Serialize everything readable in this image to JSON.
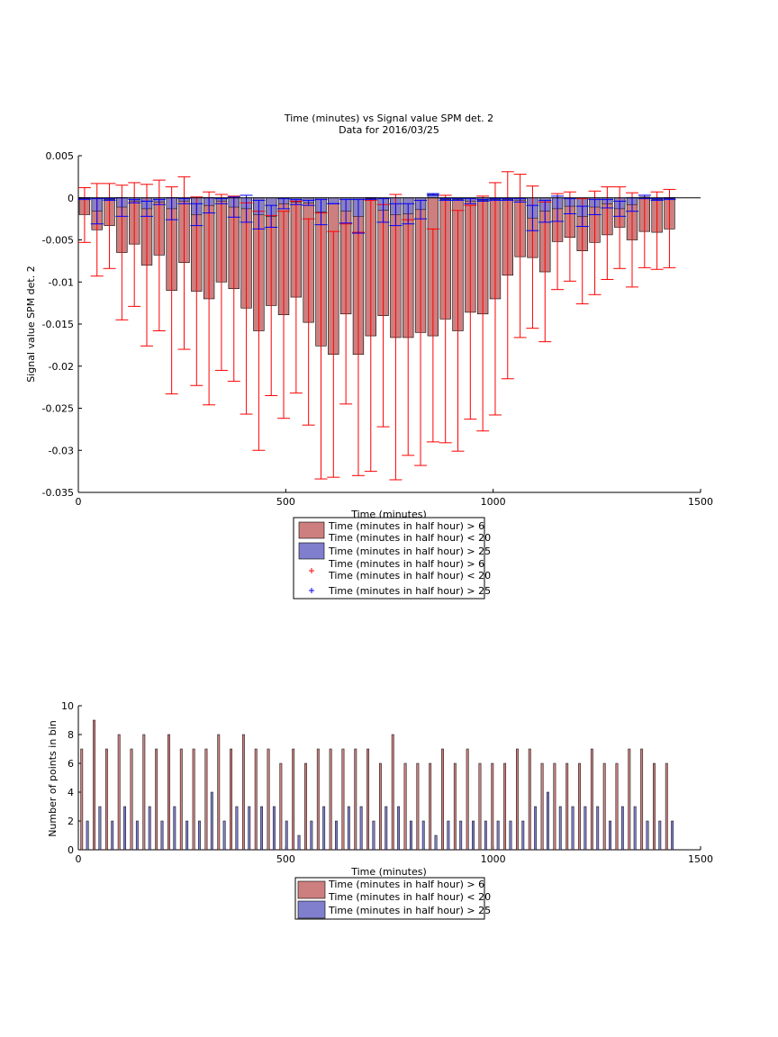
{
  "chart_data": [
    {
      "type": "bar",
      "title": "Time (minutes) vs Signal value SPM det. 2",
      "subtitle": "Data for 2016/03/25",
      "xlabel": "Time (minutes)",
      "ylabel": "Signal value SPM det. 2",
      "xlim": [
        0,
        1500
      ],
      "ylim": [
        -0.035,
        0.005
      ],
      "xticks": [
        "0",
        "500",
        "1000",
        "1500"
      ],
      "yticks": [
        "0.005",
        "0",
        "-0.005",
        "-0.01",
        "-0.015",
        "-0.02",
        "-0.025",
        "-0.03",
        "-0.035"
      ],
      "grid": false,
      "legend_placement": "below",
      "legend": [
        {
          "marker": "bar",
          "color": "#cd7f7f",
          "lines": [
            "Time (minutes in half hour) > 6",
            "Time (minutes in half hour) < 20"
          ]
        },
        {
          "marker": "bar",
          "color": "#7f7fcd",
          "lines": [
            "Time (minutes in half hour) > 25"
          ]
        },
        {
          "marker": "plus",
          "color": "#ff0000",
          "lines": [
            "Time (minutes in half hour) > 6",
            "Time (minutes in half hour) < 20"
          ]
        },
        {
          "marker": "plus",
          "color": "#0000ff",
          "lines": [
            "Time (minutes in half hour) > 25"
          ]
        }
      ],
      "x": [
        15,
        45,
        75,
        105,
        135,
        165,
        195,
        225,
        255,
        285,
        315,
        345,
        375,
        405,
        435,
        465,
        495,
        525,
        555,
        585,
        615,
        645,
        675,
        705,
        735,
        765,
        795,
        825,
        855,
        885,
        915,
        945,
        975,
        1005,
        1035,
        1065,
        1095,
        1125,
        1155,
        1185,
        1215,
        1245,
        1275,
        1305,
        1335,
        1365,
        1395,
        1425
      ],
      "series": [
        {
          "name": "Time (minutes in half hour) > 6 Time (minutes in half hour) < 20",
          "color": "#cd7f7f",
          "error_color": "#ff0000",
          "values": [
            -0.002,
            -0.0038,
            -0.0033,
            -0.0065,
            -0.0055,
            -0.008,
            -0.0068,
            -0.011,
            -0.0077,
            -0.0111,
            -0.012,
            -0.01,
            -0.0108,
            -0.0131,
            -0.0158,
            -0.0128,
            -0.0139,
            -0.0118,
            -0.0148,
            -0.0176,
            -0.0186,
            -0.0138,
            -0.0186,
            -0.0164,
            -0.014,
            -0.0166,
            -0.0166,
            -0.016,
            -0.0164,
            -0.0144,
            -0.0158,
            -0.0136,
            -0.0138,
            -0.012,
            -0.0092,
            -0.007,
            -0.0071,
            -0.0088,
            -0.0052,
            -0.0047,
            -0.0063,
            -0.0053,
            -0.0044,
            -0.0035,
            -0.005,
            -0.004,
            -0.0041,
            -0.0037
          ],
          "err_low": [
            -0.0053,
            -0.0093,
            -0.0084,
            -0.0145,
            -0.0129,
            -0.0176,
            -0.0158,
            -0.0233,
            -0.018,
            -0.0223,
            -0.0246,
            -0.0205,
            -0.0218,
            -0.0257,
            -0.03,
            -0.0235,
            -0.0262,
            -0.0232,
            -0.027,
            -0.0334,
            -0.0332,
            -0.0245,
            -0.033,
            -0.0325,
            -0.0272,
            -0.0335,
            -0.0306,
            -0.0318,
            -0.029,
            -0.0291,
            -0.0301,
            -0.0263,
            -0.0277,
            -0.0258,
            -0.0215,
            -0.0166,
            -0.0155,
            -0.0171,
            -0.0109,
            -0.0099,
            -0.0126,
            -0.0115,
            -0.0097,
            -0.0084,
            -0.0106,
            -0.0083,
            -0.0085,
            -0.0083
          ],
          "err_high": [
            0.0012,
            0.0017,
            0.0017,
            0.0015,
            0.0018,
            0.0016,
            0.0021,
            0.0013,
            0.0025,
            0.0001,
            0.0007,
            0.0004,
            0.0002,
            -0.0006,
            -0.0016,
            -0.0021,
            -0.0016,
            -0.0004,
            -0.0025,
            -0.0018,
            -0.004,
            -0.0031,
            -0.0041,
            -0.0003,
            -0.0008,
            0.0004,
            -0.0026,
            -0.0003,
            -0.0037,
            0.0003,
            -0.0015,
            -0.0009,
            0.0002,
            0.0018,
            0.0031,
            0.0028,
            0.0014,
            -0.0005,
            0.0005,
            0.0007,
            -0.0001,
            0.0008,
            0.0013,
            0.0013,
            0.0006,
            0.0003,
            0.0007,
            0.001
          ]
        },
        {
          "name": "Time (minutes in half hour) > 25",
          "color": "#7f7fcd",
          "error_color": "#0000ff",
          "values": [
            -0.0001,
            -0.0016,
            -0.0002,
            -0.0011,
            -0.0004,
            -0.0013,
            -0.0005,
            -0.0013,
            -0.0004,
            -0.002,
            -0.0009,
            -0.0004,
            -0.0011,
            -0.0013,
            -0.002,
            -0.0022,
            -0.0007,
            -0.0005,
            -0.0006,
            -0.0017,
            -0.0007,
            -0.0016,
            -0.0022,
            -0.0001,
            -0.0015,
            -0.002,
            -0.0019,
            -0.0014,
            0.0004,
            -0.0002,
            -0.0002,
            -0.0004,
            -0.0003,
            -0.0002,
            -0.0002,
            -0.0003,
            -0.0024,
            -0.0016,
            -0.0013,
            -0.001,
            -0.0022,
            -0.0011,
            -0.0007,
            -0.0013,
            -0.0008,
            0.0001,
            -0.0002,
            -0.0001
          ],
          "err_low": [
            -0.0002,
            -0.0031,
            -0.0003,
            -0.0022,
            -0.0006,
            -0.0022,
            -0.0008,
            -0.0026,
            -0.0007,
            -0.0033,
            -0.0018,
            -0.0007,
            -0.0023,
            -0.0029,
            -0.0037,
            -0.0035,
            -0.0013,
            -0.0008,
            -0.0009,
            -0.0032,
            -0.0007,
            -0.003,
            -0.0042,
            -0.0002,
            -0.0029,
            -0.0033,
            -0.0031,
            -0.0025,
            0.0003,
            -0.0003,
            -0.0003,
            -0.0007,
            -0.0004,
            -0.0003,
            -0.0003,
            -0.0005,
            -0.0039,
            -0.0029,
            -0.0028,
            -0.0019,
            -0.0034,
            -0.002,
            -0.0012,
            -0.0022,
            -0.0016,
            -0.0001,
            -0.0003,
            -0.0002
          ],
          "err_high": [
            0.0,
            -0.0001,
            -0.0001,
            0.0,
            -0.0002,
            -0.0004,
            -0.0002,
            0.0,
            -0.0001,
            -0.0007,
            0.0,
            -0.0001,
            0.0001,
            0.0003,
            -0.0003,
            -0.0009,
            -0.0001,
            -0.0002,
            -0.0003,
            -0.0002,
            -0.0007,
            -0.0002,
            -0.0002,
            0.0,
            -0.0001,
            -0.0007,
            -0.0007,
            -0.0003,
            0.0005,
            -0.0001,
            -0.0001,
            -0.0001,
            -0.0002,
            -0.0001,
            -0.0001,
            -0.0001,
            -0.0009,
            -0.0003,
            0.0002,
            -0.0001,
            -0.001,
            -0.0002,
            -0.0002,
            -0.0004,
            0.0,
            0.0003,
            -0.0001,
            0.0
          ]
        }
      ]
    },
    {
      "type": "bar",
      "title": "",
      "xlabel": "Time (minutes)",
      "ylabel": "Number of points in bin",
      "xlim": [
        0,
        1500
      ],
      "ylim": [
        0,
        10
      ],
      "xticks": [
        "0",
        "500",
        "1000",
        "1500"
      ],
      "yticks": [
        "10",
        "8",
        "6",
        "4",
        "2",
        "0"
      ],
      "grid": false,
      "legend_placement": "below",
      "legend": [
        {
          "marker": "bar",
          "color": "#cd7f7f",
          "lines": [
            "Time (minutes in half hour) > 6",
            "Time (minutes in half hour) < 20"
          ]
        },
        {
          "marker": "bar",
          "color": "#7f7fcd",
          "lines": [
            "Time (minutes in half hour) > 25"
          ]
        }
      ],
      "x": [
        15,
        45,
        75,
        105,
        135,
        165,
        195,
        225,
        255,
        285,
        315,
        345,
        375,
        405,
        435,
        465,
        495,
        525,
        555,
        585,
        615,
        645,
        675,
        705,
        735,
        765,
        795,
        825,
        855,
        885,
        915,
        945,
        975,
        1005,
        1035,
        1065,
        1095,
        1125,
        1155,
        1185,
        1215,
        1245,
        1275,
        1305,
        1335,
        1365,
        1395,
        1425
      ],
      "series": [
        {
          "name": "Time (minutes in half hour) > 6 Time (minutes in half hour) < 20",
          "color": "#cd7f7f",
          "values": [
            7,
            9,
            7,
            8,
            7,
            8,
            7,
            8,
            7,
            7,
            7,
            8,
            7,
            8,
            7,
            7,
            6,
            7,
            6,
            7,
            7,
            7,
            7,
            7,
            6,
            8,
            6,
            6,
            6,
            7,
            6,
            7,
            6,
            6,
            6,
            7,
            7,
            6,
            6,
            6,
            6,
            7,
            6,
            6,
            7,
            7,
            6,
            6
          ]
        },
        {
          "name": "Time (minutes in half hour) > 25",
          "color": "#7f7fcd",
          "values": [
            2,
            3,
            2,
            3,
            2,
            3,
            2,
            3,
            2,
            2,
            4,
            2,
            3,
            3,
            3,
            3,
            2,
            1,
            2,
            3,
            2,
            3,
            3,
            2,
            3,
            3,
            2,
            2,
            1,
            2,
            2,
            2,
            2,
            2,
            2,
            2,
            3,
            4,
            3,
            3,
            3,
            3,
            2,
            3,
            3,
            2,
            2,
            2
          ]
        }
      ]
    }
  ]
}
